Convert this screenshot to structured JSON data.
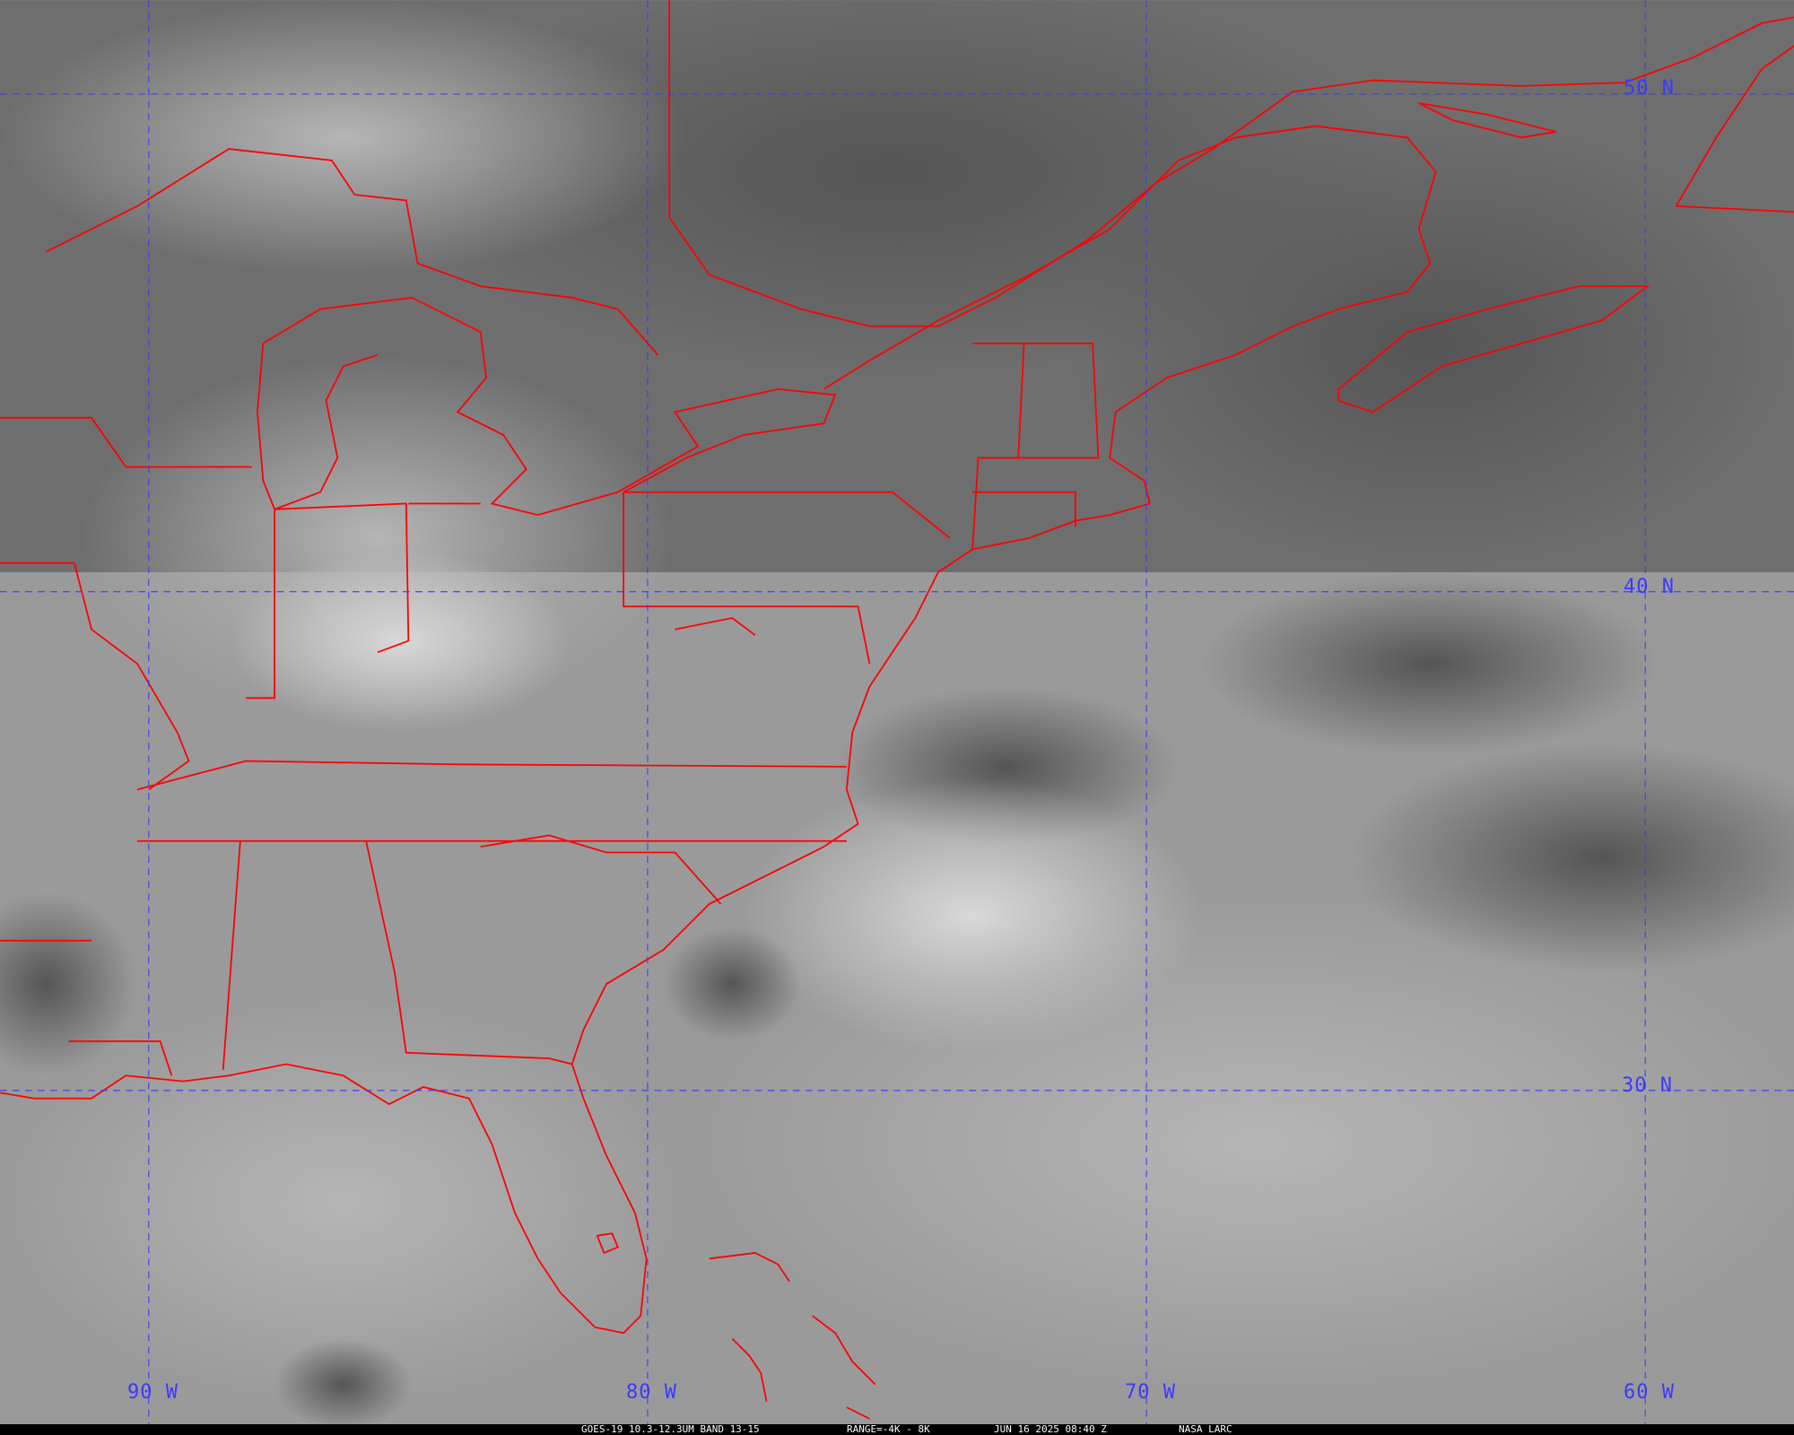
{
  "map": {
    "grid_labels": {
      "lat": [
        "50 N",
        "40 N",
        "30 N"
      ],
      "lon": [
        "90 W",
        "80 W",
        "70 W",
        "60 W"
      ]
    },
    "colors": {
      "boundaries": "#ff0000",
      "grid": "#3a3aff",
      "caption_bg": "#000000",
      "caption_text": "#ffffff"
    }
  },
  "caption": {
    "product": "GOES-19 10.3-12.3UM BAND 13-15",
    "range": "RANGE=-4K - 8K",
    "datetime": "JUN 16 2025 08:40 Z",
    "source": "NASA LARC"
  }
}
